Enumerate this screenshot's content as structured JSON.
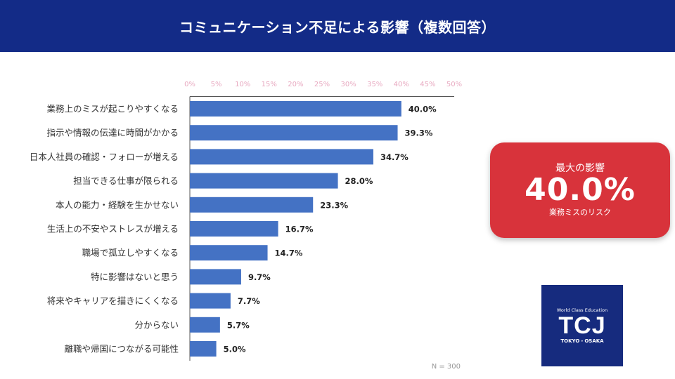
{
  "header": {
    "title": "コミュニケーション不足による影響（複数回答）"
  },
  "chart_data": {
    "type": "bar",
    "orientation": "horizontal",
    "categories": [
      "業務上のミスが起こりやすくなる",
      "指示や情報の伝達に時間がかかる",
      "日本人社員の確認・フォローが増える",
      "担当できる仕事が限られる",
      "本人の能力・経験を生かせない",
      "生活上の不安やストレスが増える",
      "職場で孤立しやすくなる",
      "特に影響はないと思う",
      "将来やキャリアを描きにくくなる",
      "分からない",
      "離職や帰国につながる可能性"
    ],
    "values": [
      40.0,
      39.3,
      34.7,
      28.0,
      23.3,
      16.7,
      14.7,
      9.7,
      7.7,
      5.7,
      5.0
    ],
    "value_labels": [
      "40.0%",
      "39.3%",
      "34.7%",
      "28.0%",
      "23.3%",
      "16.7%",
      "14.7%",
      "9.7%",
      "7.7%",
      "5.7%",
      "5.0%"
    ],
    "xlim": [
      0,
      50
    ],
    "ticks": [
      "0%",
      "5%",
      "10%",
      "15%",
      "20%",
      "25%",
      "30%",
      "35%",
      "40%",
      "45%",
      "50%"
    ],
    "note": "N = 300",
    "bar_color": "#4472c4",
    "grid": false,
    "xaxis_position": "top"
  },
  "callout": {
    "title": "最大の影響",
    "value": "40.0%",
    "subtitle": "業務ミスのリスク",
    "color": "#d8333b"
  },
  "logo": {
    "top_text": "World Class Education",
    "main_text": "TCJ",
    "bottom_text": "TOKYO・OSAKA",
    "color": "#162b7e"
  },
  "colors": {
    "header": "#132b87",
    "tick_text": "#e8a9c0"
  }
}
